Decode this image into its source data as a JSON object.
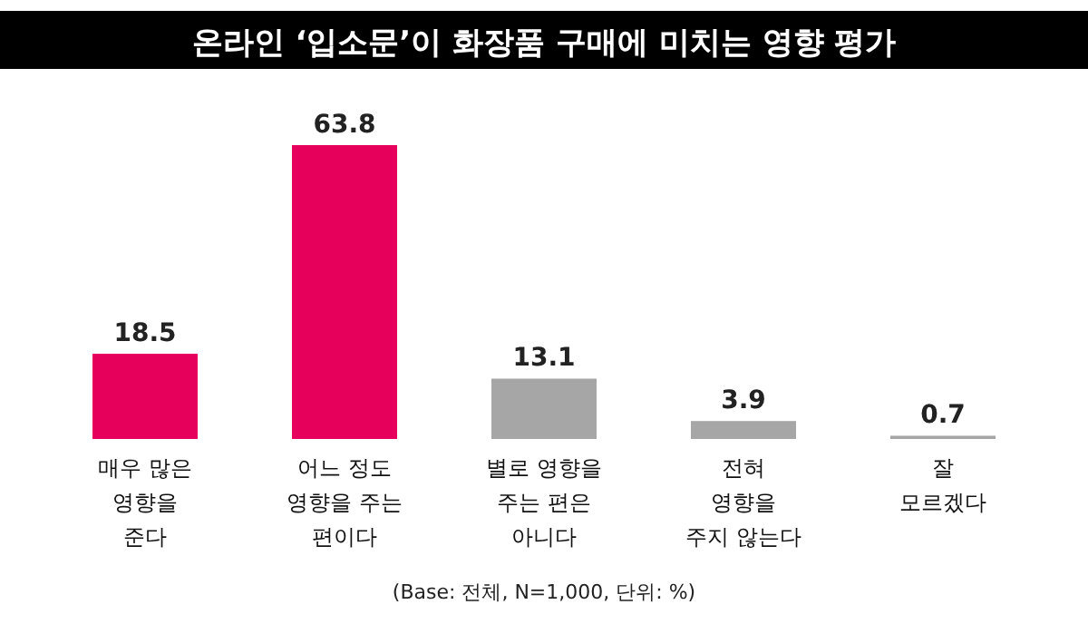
{
  "chart_data": {
    "type": "bar",
    "title": "온라인 ‘입소문’이 화장품 구매에 미치는 영향 평가",
    "categories": [
      "매우 많은\n영향을\n준다",
      "어느 정도\n영향을 주는\n편이다",
      "별로 영향을\n주는 편은\n아니다",
      "전혀\n영향을\n주지 않는다",
      "잘\n모르겠다"
    ],
    "values": [
      18.5,
      63.8,
      13.1,
      3.9,
      0.7
    ],
    "colors": [
      "#e6005c",
      "#e6005c",
      "#a6a6a6",
      "#a6a6a6",
      "#a6a6a6"
    ],
    "relative": false,
    "data_labels": true,
    "annotations": [
      "(Base: 전체, N=1,000, 단위: %)"
    ]
  }
}
